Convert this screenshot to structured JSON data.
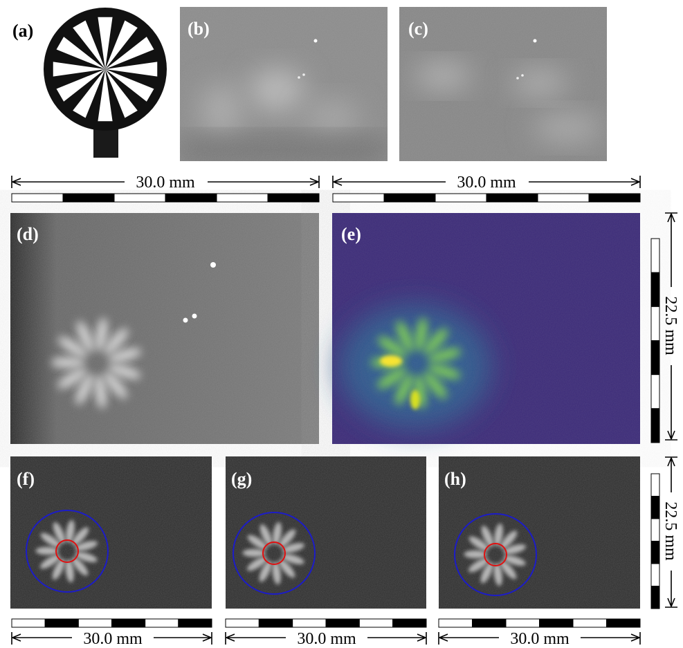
{
  "panels": [
    {
      "label": "(a)"
    },
    {
      "label": "(b)"
    },
    {
      "label": "(c)"
    },
    {
      "label": "(d)"
    },
    {
      "label": "(e)"
    },
    {
      "label": "(f)"
    },
    {
      "label": "(g)"
    },
    {
      "label": "(h)"
    }
  ],
  "scale_bars": {
    "top": [
      "30.0 mm",
      "30.0 mm"
    ],
    "bottom": [
      "30.0 mm",
      "30.0 mm",
      "30.0 mm"
    ],
    "vertical": [
      "22.5 mm",
      "22.5 mm"
    ]
  }
}
